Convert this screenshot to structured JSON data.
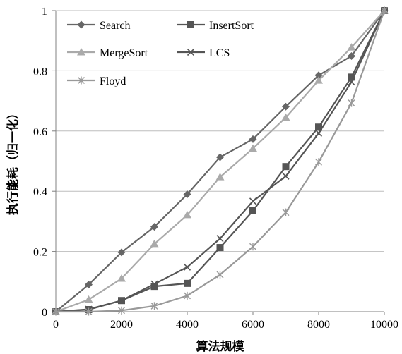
{
  "chart_data": {
    "type": "line",
    "xlabel": "算法规模",
    "ylabel": "执行能耗（归一化）",
    "xlim": [
      0,
      10000
    ],
    "ylim": [
      0,
      1
    ],
    "x_ticks": [
      "0",
      "2000",
      "4000",
      "6000",
      "8000",
      "10000"
    ],
    "y_ticks": [
      "0",
      "0.2",
      "0.4",
      "0.6",
      "0.8",
      "1"
    ],
    "grid": "horizontal",
    "legend_position": "top-left",
    "x": [
      0,
      1000,
      2000,
      3000,
      4000,
      5000,
      6000,
      7000,
      8000,
      9000,
      10000
    ],
    "series": [
      {
        "name": "Search",
        "color": "#666666",
        "marker": "diamond",
        "values": [
          0,
          0.09,
          0.197,
          0.282,
          0.39,
          0.513,
          0.573,
          0.681,
          0.785,
          0.849,
          1
        ]
      },
      {
        "name": "InsertSort",
        "color": "#555555",
        "marker": "square",
        "values": [
          0,
          0.007,
          0.037,
          0.084,
          0.094,
          0.213,
          0.335,
          0.482,
          0.613,
          0.779,
          1
        ]
      },
      {
        "name": "MergeSort",
        "color": "#aaaaaa",
        "marker": "triangle",
        "values": [
          0,
          0.04,
          0.11,
          0.225,
          0.321,
          0.447,
          0.542,
          0.645,
          0.768,
          0.878,
          1
        ]
      },
      {
        "name": "LCS",
        "color": "#555555",
        "marker": "x",
        "values": [
          0,
          0.008,
          0.037,
          0.092,
          0.148,
          0.243,
          0.367,
          0.45,
          0.593,
          0.763,
          1
        ]
      },
      {
        "name": "Floyd",
        "color": "#999999",
        "marker": "asterisk",
        "values": [
          0,
          0.0,
          0.004,
          0.019,
          0.053,
          0.123,
          0.216,
          0.33,
          0.497,
          0.693,
          1
        ]
      }
    ]
  }
}
